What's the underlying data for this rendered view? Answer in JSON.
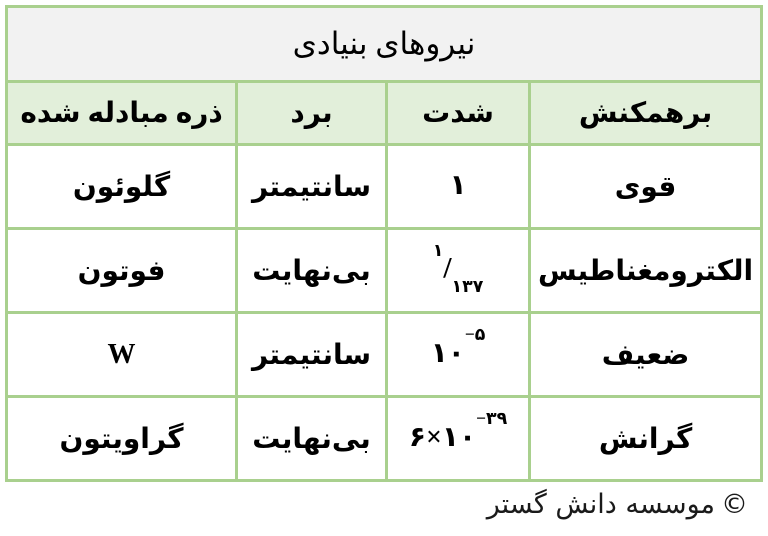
{
  "table": {
    "title": "نیروهای بنیادی",
    "header": {
      "interaction": "برهمکنش",
      "intensity": "شدت",
      "range": "برد",
      "particle": "ذره مبادله شده"
    },
    "rows": [
      {
        "interaction": "قوی",
        "intensity": {
          "text": "۱"
        },
        "range": "سانتیمتر",
        "particle": "گلوئون"
      },
      {
        "interaction": "الکترومغناطیس",
        "intensity": {
          "fsup": "۱",
          "slash": "/",
          "fsub": "۱۳۷"
        },
        "range": "بی‌نهایت",
        "particle": "فوتون"
      },
      {
        "interaction": "ضعیف",
        "intensity": {
          "base": "۱۰",
          "sup": "−۵"
        },
        "range": "سانتیمتر",
        "particle": "W"
      },
      {
        "interaction": "گرانش",
        "intensity": {
          "base": "۶×۱۰",
          "sup": "−۳۹"
        },
        "range": "بی‌نهایت",
        "particle": "گراویتون"
      }
    ]
  },
  "footer": {
    "symbol": "©",
    "text": "موسسه دانش گستر"
  },
  "colors": {
    "border_green": "#A9D08E",
    "header_bg": "#E2EFDA",
    "title_bg": "#F2F2F2",
    "cell_bg": "#FFFFFF",
    "text": "#000000"
  },
  "chart_data": {
    "type": "table",
    "title": "نیروهای بنیادی",
    "direction": "rtl",
    "columns": [
      "برهمکنش",
      "شدت",
      "برد",
      "ذره مبادله شده"
    ],
    "rows": [
      [
        "قوی",
        "۱",
        "سانتیمتر",
        "گلوئون"
      ],
      [
        "الکترومغناطیس",
        "۱/۱۳۷",
        "بی‌نهایت",
        "فوتون"
      ],
      [
        "ضعیف",
        "۱۰^−۵",
        "سانتیمتر",
        "W"
      ],
      [
        "گرانش",
        "۶×۱۰^−۳۹",
        "بی‌نهایت",
        "گراویتون"
      ]
    ],
    "intensity_values_ascii": [
      "1",
      "1/137",
      "10^-5",
      "6x10^-39"
    ],
    "footer_note": "© موسسه دانش گستر"
  }
}
